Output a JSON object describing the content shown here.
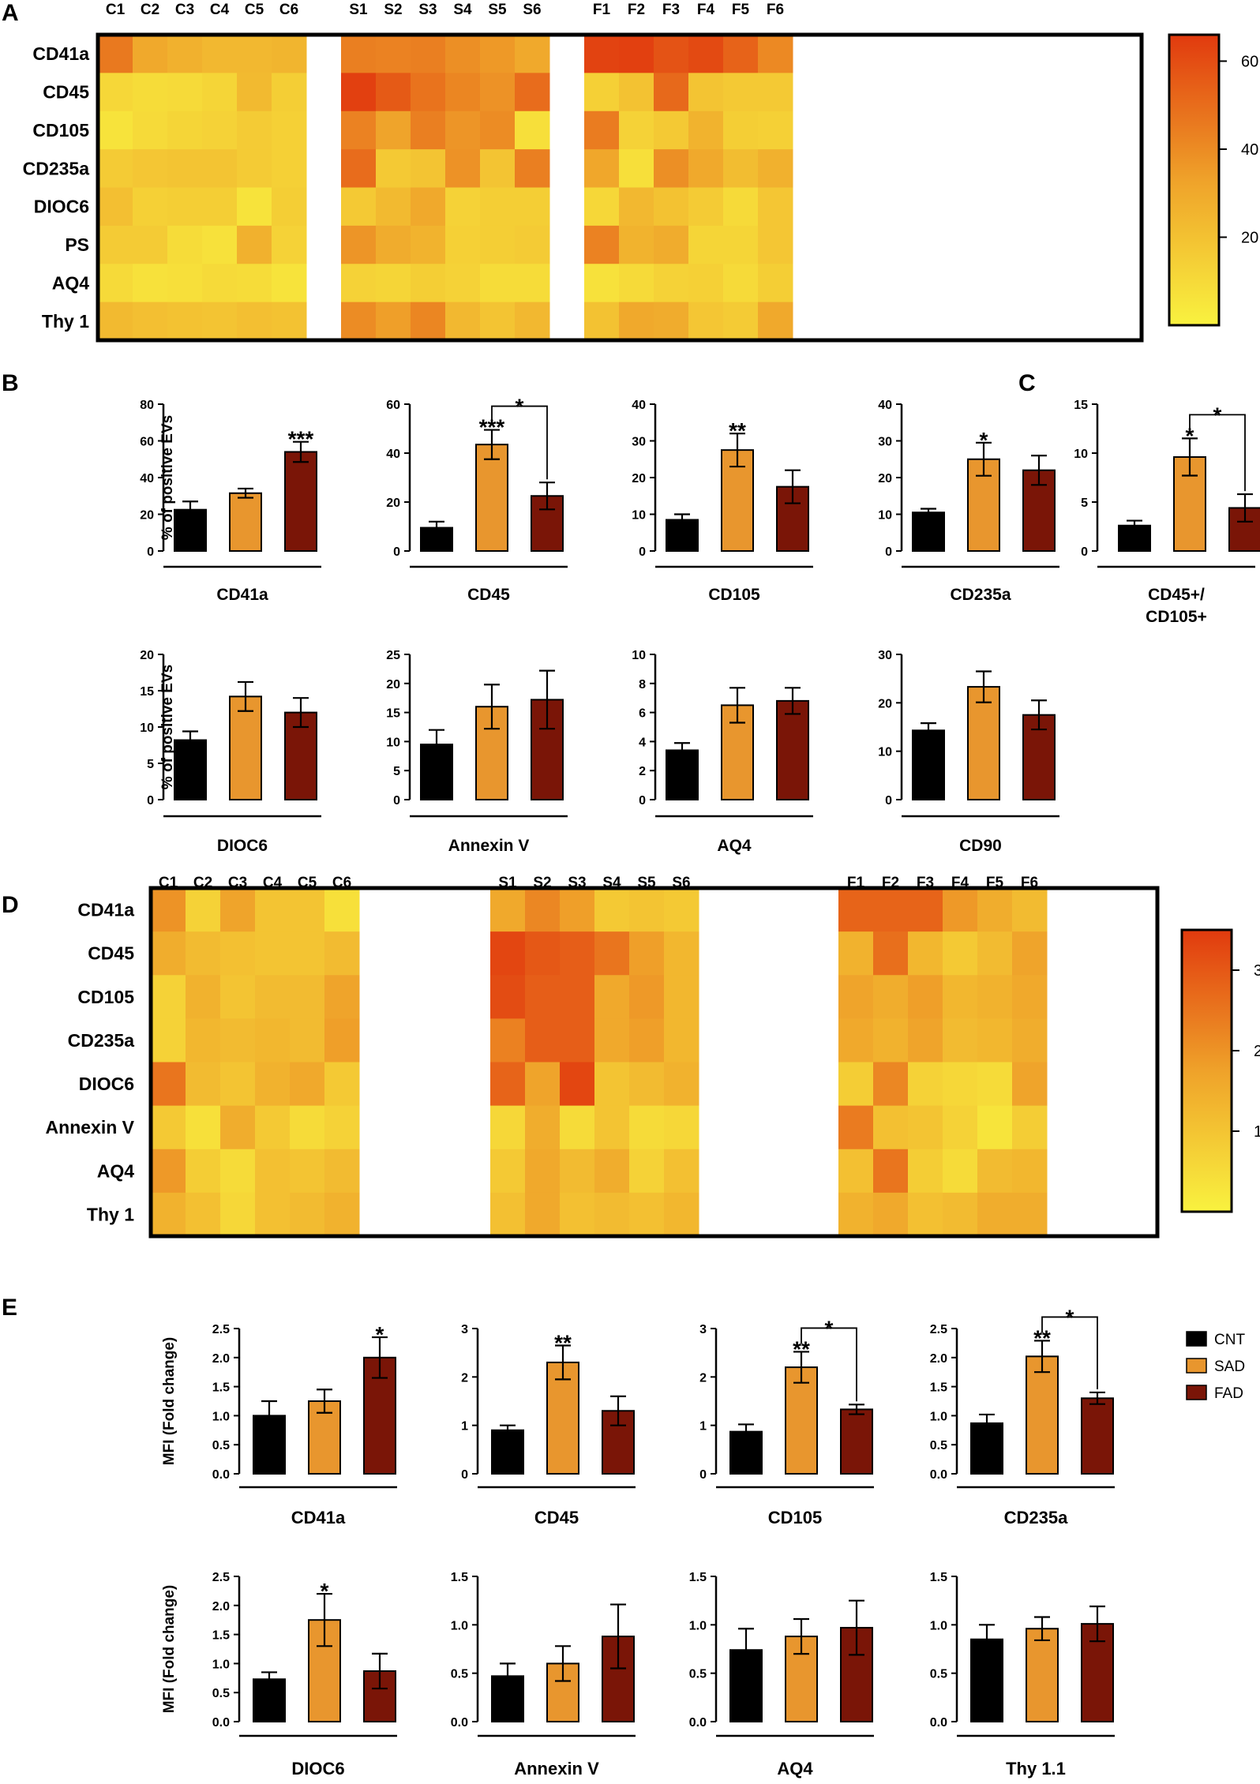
{
  "colors": {
    "CNT": "#000000",
    "SAD": "#E8962E",
    "FAD": "#7A1507",
    "heat_low": "#F9F23F",
    "heat_mid": "#EFA22A",
    "heat_high": "#E13A0E",
    "frame": "#000000"
  },
  "panels": {
    "A": "A",
    "B": "B",
    "C": "C",
    "D": "D",
    "E": "E"
  },
  "legend": {
    "entries": [
      "CNT",
      "SAD",
      "FAD"
    ]
  },
  "chart_data": [
    {
      "id": "A",
      "type": "heatmap",
      "title": "",
      "columns": [
        "C1",
        "C2",
        "C3",
        "C4",
        "C5",
        "C6",
        "S1",
        "S2",
        "S3",
        "S4",
        "S5",
        "S6",
        "F1",
        "F2",
        "F3",
        "F4",
        "F5",
        "F6"
      ],
      "rows": [
        "CD41a",
        "CD45",
        "CD105",
        "CD235a",
        "DIOC6",
        "PS",
        "AQ4",
        "Thy 1"
      ],
      "colorbar": {
        "min": 0,
        "max": 66,
        "ticks": [
          "20",
          "40",
          "60"
        ]
      },
      "values": [
        [
          46,
          30,
          27,
          24,
          24,
          25,
          44,
          43,
          44,
          39,
          36,
          30,
          63,
          64,
          58,
          61,
          53,
          41
        ],
        [
          11,
          9,
          10,
          12,
          23,
          15,
          64,
          56,
          48,
          42,
          38,
          50,
          14,
          20,
          51,
          19,
          17,
          17
        ],
        [
          6,
          10,
          12,
          13,
          16,
          14,
          43,
          32,
          44,
          37,
          40,
          8,
          45,
          13,
          17,
          26,
          15,
          14
        ],
        [
          16,
          18,
          19,
          19,
          16,
          14,
          50,
          17,
          19,
          38,
          19,
          44,
          31,
          8,
          39,
          30,
          22,
          27
        ],
        [
          21,
          14,
          15,
          15,
          6,
          15,
          17,
          23,
          30,
          13,
          15,
          15,
          11,
          24,
          20,
          16,
          10,
          18
        ],
        [
          16,
          16,
          9,
          7,
          27,
          13,
          37,
          29,
          26,
          14,
          15,
          16,
          43,
          26,
          29,
          12,
          12,
          18
        ],
        [
          10,
          7,
          8,
          10,
          9,
          6,
          13,
          12,
          15,
          13,
          9,
          9,
          7,
          10,
          13,
          14,
          10,
          15
        ],
        [
          23,
          21,
          20,
          19,
          21,
          20,
          40,
          34,
          42,
          24,
          19,
          24,
          20,
          30,
          29,
          18,
          16,
          30
        ]
      ]
    },
    {
      "id": "B",
      "type": "bar",
      "subplots": [
        {
          "title": "CD41a",
          "ylabel": "% of positive EVs",
          "ylim": [
            0,
            80
          ],
          "ticks": [
            "0",
            "20",
            "40",
            "60",
            "80"
          ],
          "categories": [
            "CNT",
            "SAD",
            "FAD"
          ],
          "values": [
            22.5,
            31.5,
            54
          ],
          "errors": [
            4.5,
            2.5,
            5.5
          ],
          "stars": [
            "",
            "",
            "***"
          ],
          "bracket": null
        },
        {
          "title": "CD45",
          "ylabel": "",
          "ylim": [
            0,
            60
          ],
          "ticks": [
            "0",
            "20",
            "40",
            "60"
          ],
          "categories": [
            "CNT",
            "SAD",
            "FAD"
          ],
          "values": [
            9.5,
            43.5,
            22.5
          ],
          "errors": [
            2.5,
            6,
            5.5
          ],
          "stars": [
            "",
            "***",
            ""
          ],
          "bracket": "*"
        },
        {
          "title": "CD105",
          "ylabel": "",
          "ylim": [
            0,
            40
          ],
          "ticks": [
            "0",
            "10",
            "20",
            "30",
            "40"
          ],
          "categories": [
            "CNT",
            "SAD",
            "FAD"
          ],
          "values": [
            8.5,
            27.5,
            17.5
          ],
          "errors": [
            1.5,
            4.5,
            4.5
          ],
          "stars": [
            "",
            "**",
            ""
          ],
          "bracket": null
        },
        {
          "title": "CD235a",
          "ylabel": "",
          "ylim": [
            0,
            40
          ],
          "ticks": [
            "0",
            "10",
            "20",
            "30",
            "40"
          ],
          "categories": [
            "CNT",
            "SAD",
            "FAD"
          ],
          "values": [
            10.5,
            25,
            22
          ],
          "errors": [
            1,
            4.5,
            4
          ],
          "stars": [
            "",
            "*",
            ""
          ],
          "bracket": null
        },
        {
          "title": "DIOC6",
          "ylabel": "% of positive EVs",
          "ylim": [
            0,
            20
          ],
          "ticks": [
            "0",
            "5",
            "10",
            "15",
            "20"
          ],
          "categories": [
            "CNT",
            "SAD",
            "FAD"
          ],
          "values": [
            8.2,
            14.2,
            12
          ],
          "errors": [
            1.2,
            2,
            2
          ],
          "stars": [
            "",
            "",
            ""
          ],
          "bracket": null
        },
        {
          "title": "Annexin V",
          "ylabel": "",
          "ylim": [
            0,
            25
          ],
          "ticks": [
            "0",
            "5",
            "10",
            "15",
            "20",
            "25"
          ],
          "categories": [
            "CNT",
            "SAD",
            "FAD"
          ],
          "values": [
            9.5,
            16,
            17.2
          ],
          "errors": [
            2.5,
            3.8,
            5
          ],
          "stars": [
            "",
            "",
            ""
          ],
          "bracket": null
        },
        {
          "title": "AQ4",
          "ylabel": "",
          "ylim": [
            0,
            10
          ],
          "ticks": [
            "0",
            "2",
            "4",
            "6",
            "8",
            "10"
          ],
          "categories": [
            "CNT",
            "SAD",
            "FAD"
          ],
          "values": [
            3.4,
            6.5,
            6.8
          ],
          "errors": [
            0.5,
            1.2,
            0.9
          ],
          "stars": [
            "",
            "",
            ""
          ],
          "bracket": null
        },
        {
          "title": "CD90",
          "ylabel": "",
          "ylim": [
            0,
            30
          ],
          "ticks": [
            "0",
            "10",
            "20",
            "30"
          ],
          "categories": [
            "CNT",
            "SAD",
            "FAD"
          ],
          "values": [
            14.3,
            23.3,
            17.5
          ],
          "errors": [
            1.5,
            3.2,
            3
          ],
          "stars": [
            "",
            "",
            ""
          ],
          "bracket": null
        }
      ]
    },
    {
      "id": "C",
      "type": "bar",
      "subplots": [
        {
          "title": "CD45+/",
          "title2": "CD105+",
          "ylabel": "",
          "ylim": [
            0,
            15
          ],
          "ticks": [
            "0",
            "5",
            "10",
            "15"
          ],
          "categories": [
            "CNT",
            "SAD",
            "FAD"
          ],
          "values": [
            2.6,
            9.6,
            4.4
          ],
          "errors": [
            0.5,
            1.9,
            1.4
          ],
          "stars": [
            "",
            "*",
            ""
          ],
          "bracket": "*"
        }
      ]
    },
    {
      "id": "D",
      "type": "heatmap",
      "title": "",
      "columns": [
        "C1",
        "C2",
        "C3",
        "C4",
        "C5",
        "C6",
        "S1",
        "S2",
        "S3",
        "S4",
        "S5",
        "S6",
        "F1",
        "F2",
        "F3",
        "F4",
        "F5",
        "F6"
      ],
      "rows": [
        "CD41a",
        "CD45",
        "CD105",
        "CD235a",
        "DIOC6",
        "Annexin V",
        "AQ4",
        "Thy 1"
      ],
      "colorbar": {
        "min": 0,
        "max": 3.5,
        "ticks": [
          "1",
          "2",
          "3"
        ]
      },
      "values": [
        [
          2.0,
          0.7,
          1.7,
          1.0,
          1.0,
          0.4,
          1.6,
          2.2,
          1.8,
          0.9,
          1.0,
          0.9,
          2.8,
          2.8,
          2.8,
          1.9,
          1.5,
          1.2
        ],
        [
          1.5,
          1.2,
          1.1,
          1.0,
          1.0,
          1.2,
          3.3,
          3.0,
          2.9,
          2.5,
          1.8,
          1.3,
          1.4,
          2.6,
          1.3,
          0.9,
          1.2,
          1.7
        ],
        [
          0.7,
          1.4,
          1.0,
          1.2,
          1.2,
          1.7,
          3.2,
          2.9,
          2.9,
          1.6,
          1.9,
          1.3,
          1.7,
          1.5,
          1.8,
          1.3,
          1.4,
          1.6
        ],
        [
          0.7,
          1.3,
          1.2,
          1.3,
          1.2,
          1.8,
          2.3,
          2.9,
          2.9,
          1.6,
          1.8,
          1.3,
          1.6,
          1.4,
          1.7,
          1.2,
          1.3,
          1.5
        ],
        [
          2.5,
          1.2,
          1.0,
          1.4,
          1.6,
          0.9,
          2.8,
          1.7,
          3.3,
          1.0,
          1.2,
          1.4,
          0.8,
          2.2,
          0.7,
          0.6,
          0.5,
          1.7
        ],
        [
          0.9,
          0.4,
          1.5,
          0.9,
          0.5,
          0.7,
          0.6,
          1.5,
          0.5,
          1.0,
          0.5,
          0.6,
          2.4,
          1.1,
          1.0,
          0.7,
          0.3,
          0.8
        ],
        [
          1.9,
          0.8,
          0.5,
          1.1,
          1.0,
          1.2,
          0.9,
          1.6,
          1.2,
          1.5,
          0.7,
          1.1,
          1.1,
          2.5,
          0.8,
          0.5,
          1.2,
          1.3
        ],
        [
          1.4,
          1.1,
          0.6,
          1.1,
          1.2,
          1.4,
          1.1,
          1.6,
          1.1,
          1.2,
          1.1,
          1.3,
          1.4,
          1.6,
          1.1,
          1.2,
          1.5,
          1.5
        ]
      ]
    },
    {
      "id": "E",
      "type": "bar",
      "subplots": [
        {
          "title": "CD41a",
          "ylabel": "MFI (Fold change)",
          "ylim": [
            0,
            2.5
          ],
          "ticks": [
            "0.0",
            "0.5",
            "1.0",
            "1.5",
            "2.0",
            "2.5"
          ],
          "categories": [
            "CNT",
            "SAD",
            "FAD"
          ],
          "values": [
            1.0,
            1.25,
            2.0
          ],
          "errors": [
            0.25,
            0.2,
            0.35
          ],
          "stars": [
            "",
            "",
            "*"
          ],
          "bracket": null
        },
        {
          "title": "CD45",
          "ylabel": "",
          "ylim": [
            0,
            3
          ],
          "ticks": [
            "0",
            "1",
            "2",
            "3"
          ],
          "categories": [
            "CNT",
            "SAD",
            "FAD"
          ],
          "values": [
            0.9,
            2.3,
            1.3
          ],
          "errors": [
            0.1,
            0.35,
            0.3
          ],
          "stars": [
            "",
            "**",
            ""
          ],
          "bracket": null
        },
        {
          "title": "CD105",
          "ylabel": "",
          "ylim": [
            0,
            3
          ],
          "ticks": [
            "0",
            "1",
            "2",
            "3"
          ],
          "categories": [
            "CNT",
            "SAD",
            "FAD"
          ],
          "values": [
            0.87,
            2.2,
            1.33
          ],
          "errors": [
            0.15,
            0.32,
            0.1
          ],
          "stars": [
            "",
            "**",
            ""
          ],
          "bracket": "*"
        },
        {
          "title": "CD235a",
          "ylabel": "",
          "ylim": [
            0,
            2.5
          ],
          "ticks": [
            "0.0",
            "0.5",
            "1.0",
            "1.5",
            "2.0",
            "2.5"
          ],
          "categories": [
            "CNT",
            "SAD",
            "FAD"
          ],
          "values": [
            0.87,
            2.02,
            1.3
          ],
          "errors": [
            0.15,
            0.27,
            0.1
          ],
          "stars": [
            "",
            "**",
            ""
          ],
          "bracket": "*"
        },
        {
          "title": "DIOC6",
          "ylabel": "MFI (Fold change)",
          "ylim": [
            0,
            2.5
          ],
          "ticks": [
            "0.0",
            "0.5",
            "1.0",
            "1.5",
            "2.0",
            "2.5"
          ],
          "categories": [
            "CNT",
            "SAD",
            "FAD"
          ],
          "values": [
            0.73,
            1.75,
            0.87
          ],
          "errors": [
            0.12,
            0.45,
            0.3
          ],
          "stars": [
            "",
            "*",
            ""
          ],
          "bracket": null
        },
        {
          "title": "Annexin V",
          "ylabel": "",
          "ylim": [
            0,
            1.5
          ],
          "ticks": [
            "0.0",
            "0.5",
            "1.0",
            "1.5"
          ],
          "categories": [
            "CNT",
            "SAD",
            "FAD"
          ],
          "values": [
            0.47,
            0.6,
            0.88
          ],
          "errors": [
            0.13,
            0.18,
            0.33
          ],
          "stars": [
            "",
            "",
            ""
          ],
          "bracket": null
        },
        {
          "title": "AQ4",
          "ylabel": "",
          "ylim": [
            0,
            1.5
          ],
          "ticks": [
            "0.0",
            "0.5",
            "1.0",
            "1.5"
          ],
          "categories": [
            "CNT",
            "SAD",
            "FAD"
          ],
          "values": [
            0.74,
            0.88,
            0.97
          ],
          "errors": [
            0.22,
            0.18,
            0.28
          ],
          "stars": [
            "",
            "",
            ""
          ],
          "bracket": null
        },
        {
          "title": "Thy 1.1",
          "ylabel": "",
          "ylim": [
            0,
            1.5
          ],
          "ticks": [
            "0.0",
            "0.5",
            "1.0",
            "1.5"
          ],
          "categories": [
            "CNT",
            "SAD",
            "FAD"
          ],
          "values": [
            0.85,
            0.96,
            1.01
          ],
          "errors": [
            0.15,
            0.12,
            0.18
          ],
          "stars": [
            "",
            "",
            ""
          ],
          "bracket": null
        }
      ]
    }
  ]
}
